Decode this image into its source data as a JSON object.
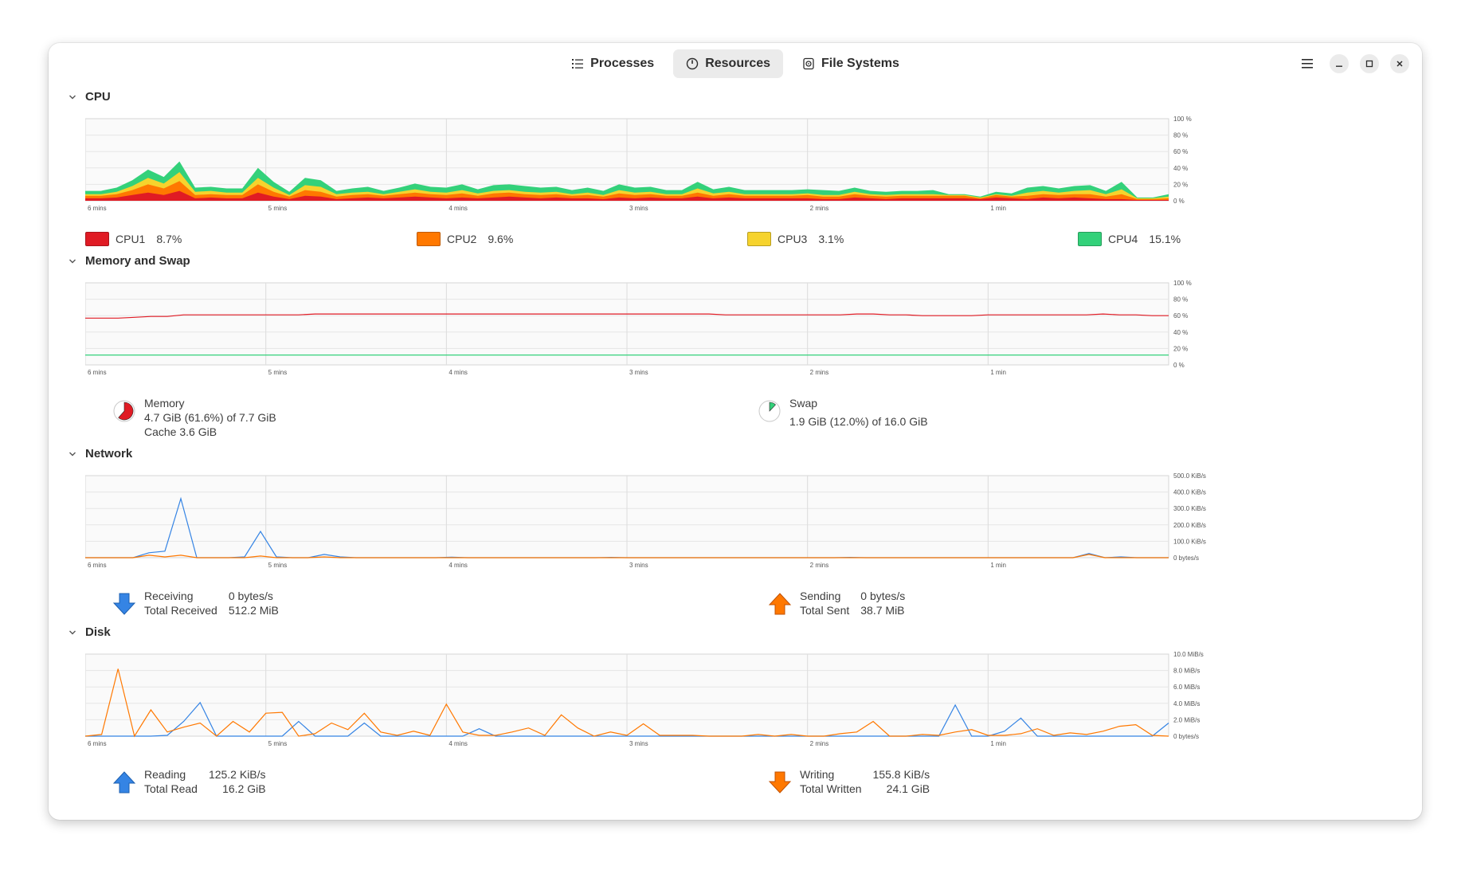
{
  "header": {
    "tabs": [
      {
        "label": "Processes",
        "icon": "list-icon"
      },
      {
        "label": "Resources",
        "icon": "gauge-icon",
        "active": true
      },
      {
        "label": "File Systems",
        "icon": "disk-icon"
      }
    ]
  },
  "time_labels": [
    "6 mins",
    "5 mins",
    "4 mins",
    "3 mins",
    "2 mins",
    "1 min"
  ],
  "cpu": {
    "title": "CPU",
    "chart_data": {
      "type": "area",
      "stacked": true,
      "x_labels": [
        "6 mins",
        "5 mins",
        "4 mins",
        "3 mins",
        "2 mins",
        "1 min"
      ],
      "y_ticks": [
        "100 %",
        "80 %",
        "60 %",
        "40 %",
        "20 %",
        "0 %"
      ],
      "ylim": [
        0,
        100
      ],
      "grid": true,
      "series": [
        {
          "name": "CPU1",
          "color": "#e01b24",
          "values": [
            3,
            3,
            4,
            7,
            10,
            7,
            12,
            3,
            4,
            3,
            3,
            10,
            5,
            2,
            6,
            5,
            2,
            3,
            4,
            3,
            4,
            5,
            4,
            3,
            4,
            3,
            4,
            5,
            4,
            3,
            4,
            3,
            3,
            2,
            4,
            3,
            4,
            3,
            3,
            5,
            3,
            4,
            3,
            3,
            3,
            3,
            3,
            2,
            2,
            4,
            3,
            2,
            3,
            3,
            3,
            3,
            3,
            2,
            4,
            3,
            2,
            4,
            3,
            4,
            3,
            2,
            2,
            1,
            1,
            1
          ]
        },
        {
          "name": "CPU2",
          "color": "#ff7800",
          "values": [
            3,
            3,
            4,
            6,
            10,
            8,
            12,
            4,
            4,
            4,
            4,
            10,
            6,
            3,
            7,
            6,
            3,
            4,
            4,
            3,
            4,
            5,
            4,
            4,
            5,
            3,
            5,
            5,
            4,
            4,
            4,
            3,
            4,
            3,
            5,
            4,
            4,
            3,
            3,
            5,
            3,
            4,
            3,
            3,
            3,
            3,
            4,
            3,
            3,
            4,
            3,
            3,
            3,
            3,
            3,
            3,
            3,
            1,
            3,
            2,
            4,
            4,
            4,
            4,
            5,
            3,
            6,
            1,
            1,
            2
          ]
        },
        {
          "name": "CPU3",
          "color": "#f6d32d",
          "values": [
            2,
            2,
            3,
            5,
            8,
            6,
            11,
            4,
            4,
            3,
            3,
            8,
            5,
            2,
            6,
            6,
            3,
            3,
            3,
            2,
            3,
            4,
            3,
            3,
            4,
            3,
            3,
            3,
            3,
            3,
            3,
            2,
            3,
            2,
            4,
            3,
            3,
            2,
            2,
            5,
            3,
            3,
            2,
            2,
            2,
            2,
            2,
            2,
            2,
            3,
            2,
            2,
            2,
            2,
            2,
            1,
            1,
            1,
            1,
            1,
            4,
            4,
            3,
            4,
            5,
            3,
            6,
            1,
            1,
            2
          ]
        },
        {
          "name": "CPU4",
          "color": "#33d17a",
          "values": [
            4,
            4,
            5,
            7,
            10,
            8,
            13,
            5,
            5,
            5,
            5,
            12,
            7,
            4,
            9,
            8,
            4,
            5,
            6,
            4,
            5,
            7,
            6,
            6,
            7,
            5,
            7,
            7,
            7,
            6,
            6,
            5,
            6,
            5,
            7,
            6,
            6,
            5,
            5,
            8,
            5,
            6,
            5,
            5,
            5,
            5,
            5,
            6,
            5,
            5,
            4,
            4,
            4,
            4,
            5,
            1,
            1,
            1,
            3,
            3,
            6,
            6,
            5,
            6,
            6,
            4,
            9,
            1,
            1,
            3
          ]
        }
      ]
    },
    "legend": [
      {
        "name": "CPU1",
        "value": "8.7%",
        "color": "#e01b24"
      },
      {
        "name": "CPU2",
        "value": "9.6%",
        "color": "#ff7800"
      },
      {
        "name": "CPU3",
        "value": "3.1%",
        "color": "#f6d32d"
      },
      {
        "name": "CPU4",
        "value": "15.1%",
        "color": "#33d17a"
      }
    ]
  },
  "memory": {
    "title": "Memory and Swap",
    "chart_data": {
      "type": "line",
      "x_labels": [
        "6 mins",
        "5 mins",
        "4 mins",
        "3 mins",
        "2 mins",
        "1 min"
      ],
      "y_ticks": [
        "100 %",
        "80 %",
        "60 %",
        "40 %",
        "20 %",
        "0 %"
      ],
      "ylim": [
        0,
        100
      ],
      "series": [
        {
          "name": "Memory",
          "color": "#e01b24",
          "values": [
            57,
            57,
            57,
            58,
            59,
            59,
            61,
            61,
            61,
            61,
            61,
            61,
            61,
            61,
            62,
            62,
            62,
            62,
            62,
            62,
            62,
            62,
            62,
            62,
            62,
            62,
            62,
            62,
            62,
            62,
            62,
            62,
            62,
            62,
            62,
            62,
            62,
            62,
            62,
            61,
            61,
            61,
            61,
            61,
            61,
            61,
            61,
            62,
            62,
            61,
            61,
            60,
            60,
            60,
            60,
            61,
            61,
            61,
            61,
            61,
            61,
            61,
            62,
            61,
            61,
            60,
            60
          ]
        },
        {
          "name": "Swap",
          "color": "#33d17a",
          "values": [
            12,
            12,
            12,
            12,
            12,
            12,
            12,
            12,
            12,
            12,
            12,
            12,
            12,
            12,
            12,
            12,
            12,
            12,
            12,
            12,
            12,
            12,
            12,
            12,
            12,
            12,
            12,
            12,
            12,
            12,
            12,
            12,
            12,
            12,
            12,
            12,
            12,
            12,
            12,
            12,
            12,
            12,
            12,
            12,
            12,
            12,
            12,
            12,
            12,
            12,
            12,
            12,
            12,
            12,
            12,
            12,
            12,
            12,
            12,
            12,
            12,
            12,
            12,
            12,
            12,
            12,
            12
          ]
        }
      ]
    },
    "memory_info": {
      "label": "Memory",
      "usage": "4.7 GiB (61.6%) of 7.7 GiB",
      "cache": "Cache 3.6 GiB",
      "fraction": 0.616,
      "color": "#e01b24"
    },
    "swap_info": {
      "label": "Swap",
      "usage": "1.9 GiB (12.0%) of 16.0 GiB",
      "fraction": 0.12,
      "color": "#33d17a"
    }
  },
  "network": {
    "title": "Network",
    "chart_data": {
      "type": "line",
      "x_labels": [
        "6 mins",
        "5 mins",
        "4 mins",
        "3 mins",
        "2 mins",
        "1 min"
      ],
      "y_ticks": [
        "500.0 KiB/s",
        "400.0 KiB/s",
        "300.0 KiB/s",
        "200.0 KiB/s",
        "100.0 KiB/s",
        "0 bytes/s"
      ],
      "ylim": [
        0,
        500
      ],
      "series": [
        {
          "name": "Receiving",
          "color": "#3584e4",
          "values": [
            0,
            0,
            0,
            0,
            30,
            40,
            360,
            0,
            0,
            0,
            5,
            160,
            5,
            0,
            0,
            20,
            5,
            0,
            0,
            0,
            0,
            0,
            0,
            3,
            0,
            0,
            0,
            0,
            0,
            0,
            0,
            0,
            0,
            2,
            0,
            0,
            0,
            0,
            0,
            0,
            0,
            0,
            0,
            0,
            0,
            0,
            0,
            0,
            2,
            0,
            0,
            0,
            0,
            0,
            0,
            0,
            0,
            0,
            0,
            0,
            0,
            0,
            0,
            25,
            0,
            5,
            0,
            0,
            0
          ]
        },
        {
          "name": "Sending",
          "color": "#ff7800",
          "values": [
            0,
            0,
            0,
            0,
            15,
            5,
            15,
            0,
            0,
            0,
            0,
            10,
            0,
            0,
            0,
            5,
            0,
            0,
            0,
            0,
            0,
            0,
            0,
            0,
            0,
            0,
            0,
            0,
            0,
            0,
            0,
            0,
            0,
            0,
            0,
            0,
            0,
            0,
            0,
            0,
            0,
            0,
            0,
            0,
            0,
            0,
            0,
            0,
            0,
            0,
            0,
            0,
            0,
            0,
            0,
            0,
            0,
            0,
            0,
            0,
            0,
            0,
            0,
            20,
            0,
            0,
            0,
            0,
            0
          ]
        }
      ]
    },
    "receiving": {
      "label": "Receiving",
      "value": "0 bytes/s",
      "total_label": "Total Received",
      "total_value": "512.2 MiB"
    },
    "sending": {
      "label": "Sending",
      "value": "0 bytes/s",
      "total_label": "Total Sent",
      "total_value": "38.7 MiB"
    }
  },
  "disk": {
    "title": "Disk",
    "chart_data": {
      "type": "line",
      "x_labels": [
        "6 mins",
        "5 mins",
        "4 mins",
        "3 mins",
        "2 mins",
        "1 min"
      ],
      "y_ticks": [
        "10.0 MiB/s",
        "8.0 MiB/s",
        "6.0 MiB/s",
        "4.0 MiB/s",
        "2.0 MiB/s",
        "0 bytes/s"
      ],
      "ylim": [
        0,
        10
      ],
      "series": [
        {
          "name": "Reading",
          "color": "#3584e4",
          "values": [
            0,
            0,
            0,
            0,
            0,
            0.1,
            1.8,
            4.1,
            0,
            0,
            0,
            0,
            0,
            1.8,
            0,
            0,
            0,
            1.6,
            0,
            0,
            0,
            0,
            0,
            0,
            0.9,
            0,
            0,
            0,
            0,
            0,
            0,
            0,
            0,
            0,
            0,
            0,
            0,
            0,
            0,
            0,
            0,
            0,
            0,
            0,
            0,
            0,
            0,
            0,
            0,
            0,
            0,
            0,
            0,
            3.8,
            0,
            0,
            0.6,
            2.2,
            0,
            0,
            0,
            0,
            0,
            0,
            0,
            0,
            1.6
          ]
        },
        {
          "name": "Writing",
          "color": "#ff7800",
          "values": [
            0,
            0.2,
            8.2,
            0,
            3.2,
            0.5,
            1.1,
            1.6,
            0,
            1.8,
            0.5,
            2.8,
            2.9,
            0,
            0.3,
            1.6,
            0.8,
            2.8,
            0.5,
            0.1,
            0.6,
            0.1,
            3.9,
            0.5,
            0.1,
            0.1,
            0.5,
            1.0,
            0.1,
            2.6,
            1.0,
            0,
            0.5,
            0.1,
            1.5,
            0.1,
            0.1,
            0.1,
            0,
            0,
            0,
            0.2,
            0,
            0.2,
            0,
            0,
            0.3,
            0.5,
            1.8,
            0,
            0,
            0.2,
            0.1,
            0.5,
            0.8,
            0.1,
            0.1,
            0.3,
            0.9,
            0.1,
            0.4,
            0.2,
            0.6,
            1.2,
            1.4,
            0.1,
            0
          ]
        }
      ]
    },
    "reading": {
      "label": "Reading",
      "value": "125.2 KiB/s",
      "total_label": "Total Read",
      "total_value": "16.2 GiB"
    },
    "writing": {
      "label": "Writing",
      "value": "155.8 KiB/s",
      "total_label": "Total Written",
      "total_value": "24.1 GiB"
    }
  }
}
